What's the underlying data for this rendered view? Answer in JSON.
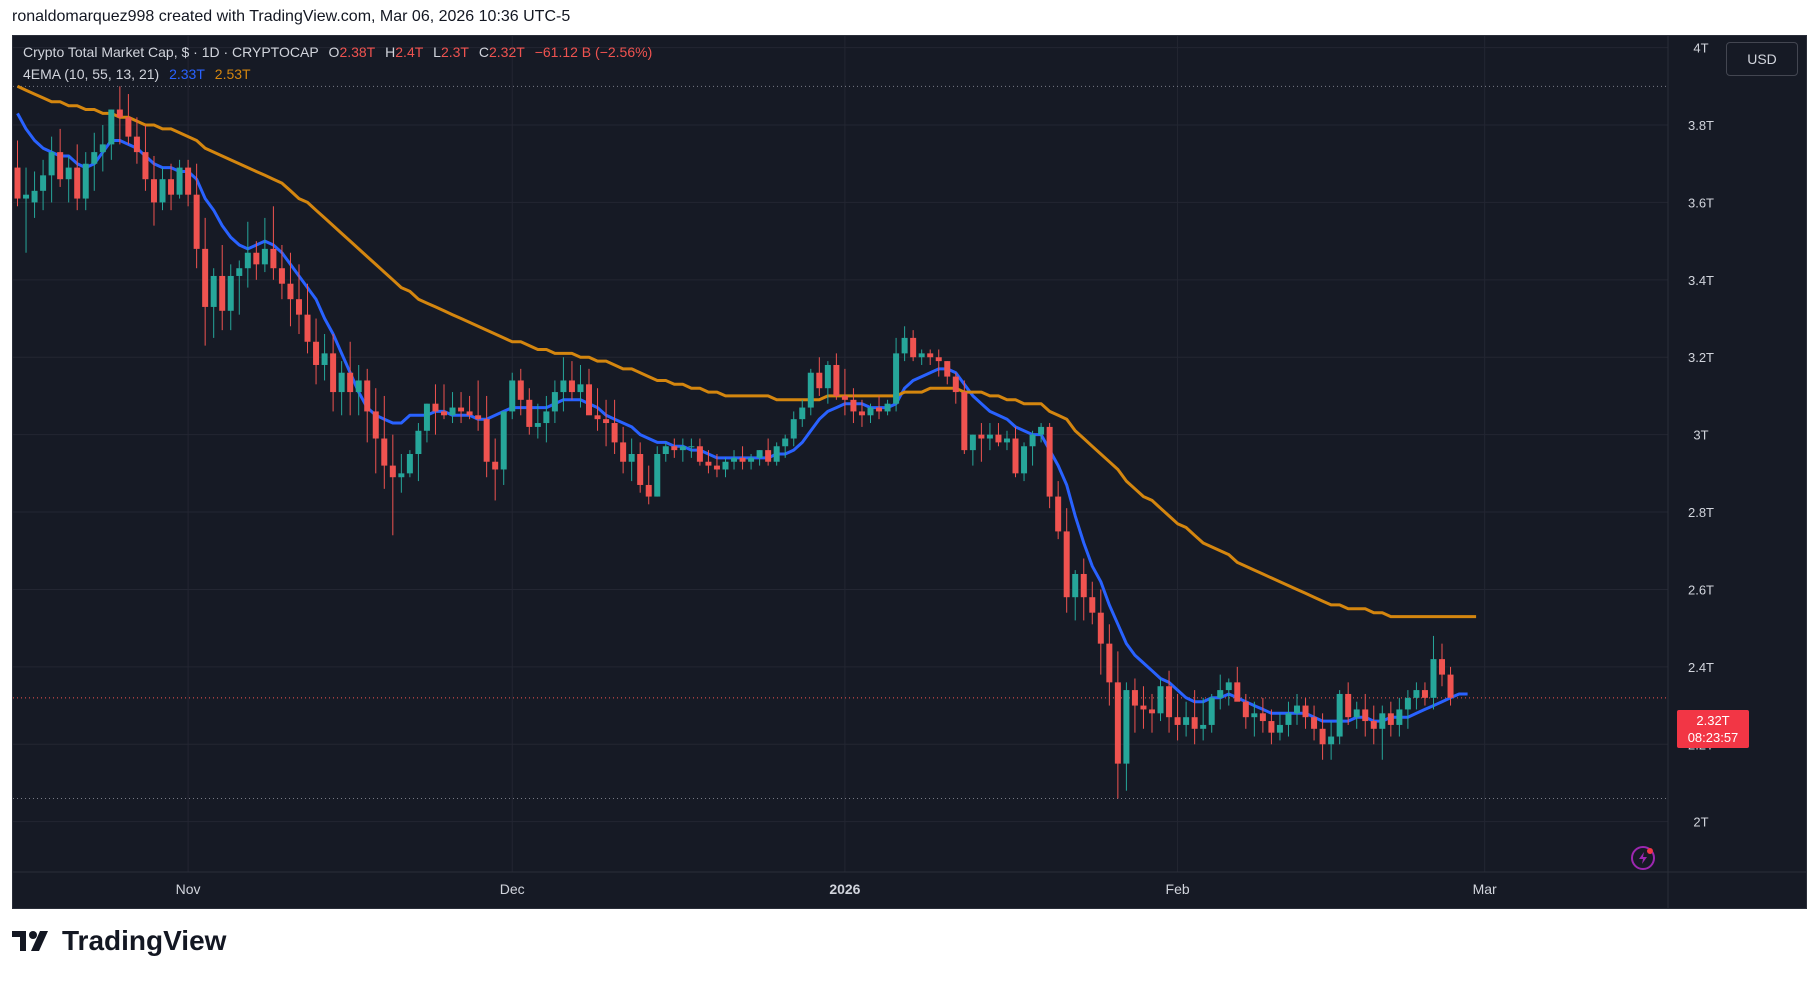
{
  "header": {
    "attribution": "ronaldomarquez998 created with TradingView.com, Mar 06, 2026 10:36 UTC-5"
  },
  "legend": {
    "symbol": "Crypto Total Market Cap, $ · 1D · CRYPTOCAP",
    "o_label": "O",
    "o_value": "2.38T",
    "h_label": "H",
    "h_value": "2.4T",
    "l_label": "L",
    "l_value": "2.3T",
    "c_label": "C",
    "c_value": "2.32T",
    "change": "−61.12 B (−2.56%)",
    "indicator": "4EMA (10, 55, 13, 21)",
    "ema_fast_value": "2.33T",
    "ema_slow_value": "2.53T"
  },
  "currency_button": "USD",
  "price_tag": {
    "value": "2.32T",
    "countdown": "08:23:57"
  },
  "brand": "TradingView",
  "colors": {
    "up": "#26a69a",
    "down": "#ef5350",
    "ema_fast": "#2962ff",
    "ema_slow": "#d4860f",
    "background": "#161a25",
    "grid": "#232632"
  },
  "chart_data": {
    "type": "candlestick",
    "yticks": [
      "2T",
      "2.2T",
      "2.4T",
      "2.6T",
      "2.8T",
      "3T",
      "3.2T",
      "3.4T",
      "3.6T",
      "3.8T",
      "4T"
    ],
    "ytick_values": [
      2.0,
      2.2,
      2.4,
      2.6,
      2.8,
      3.0,
      3.2,
      3.4,
      3.6,
      3.8,
      4.0
    ],
    "ylim": [
      1.87,
      4.03
    ],
    "xticks": [
      {
        "label": "Nov",
        "index": 20
      },
      {
        "label": "Dec",
        "index": 58
      },
      {
        "label": "2026",
        "index": 97
      },
      {
        "label": "Feb",
        "index": 136
      },
      {
        "label": "Mar",
        "index": 172
      }
    ],
    "candles": [
      [
        3.69,
        3.76,
        3.59,
        3.61
      ],
      [
        3.61,
        3.69,
        3.47,
        3.62
      ],
      [
        3.6,
        3.68,
        3.56,
        3.63
      ],
      [
        3.63,
        3.71,
        3.58,
        3.67
      ],
      [
        3.67,
        3.77,
        3.6,
        3.73
      ],
      [
        3.73,
        3.79,
        3.64,
        3.66
      ],
      [
        3.66,
        3.72,
        3.6,
        3.69
      ],
      [
        3.69,
        3.75,
        3.58,
        3.61
      ],
      [
        3.61,
        3.73,
        3.58,
        3.7
      ],
      [
        3.7,
        3.78,
        3.63,
        3.73
      ],
      [
        3.73,
        3.8,
        3.68,
        3.75
      ],
      [
        3.75,
        3.84,
        3.71,
        3.84
      ],
      [
        3.84,
        3.9,
        3.75,
        3.82
      ],
      [
        3.82,
        3.88,
        3.75,
        3.77
      ],
      [
        3.77,
        3.82,
        3.7,
        3.73
      ],
      [
        3.73,
        3.8,
        3.63,
        3.66
      ],
      [
        3.66,
        3.72,
        3.54,
        3.6
      ],
      [
        3.6,
        3.69,
        3.58,
        3.66
      ],
      [
        3.66,
        3.7,
        3.58,
        3.62
      ],
      [
        3.62,
        3.71,
        3.61,
        3.69
      ],
      [
        3.69,
        3.71,
        3.59,
        3.62
      ],
      [
        3.62,
        3.7,
        3.43,
        3.48
      ],
      [
        3.48,
        3.56,
        3.23,
        3.33
      ],
      [
        3.33,
        3.43,
        3.25,
        3.41
      ],
      [
        3.41,
        3.49,
        3.27,
        3.32
      ],
      [
        3.32,
        3.44,
        3.27,
        3.41
      ],
      [
        3.41,
        3.45,
        3.31,
        3.43
      ],
      [
        3.43,
        3.55,
        3.38,
        3.47
      ],
      [
        3.47,
        3.5,
        3.4,
        3.44
      ],
      [
        3.44,
        3.56,
        3.42,
        3.48
      ],
      [
        3.48,
        3.59,
        3.4,
        3.43
      ],
      [
        3.43,
        3.49,
        3.35,
        3.39
      ],
      [
        3.39,
        3.47,
        3.28,
        3.35
      ],
      [
        3.35,
        3.44,
        3.26,
        3.31
      ],
      [
        3.31,
        3.39,
        3.21,
        3.24
      ],
      [
        3.24,
        3.3,
        3.13,
        3.18
      ],
      [
        3.18,
        3.26,
        3.14,
        3.21
      ],
      [
        3.21,
        3.26,
        3.06,
        3.11
      ],
      [
        3.11,
        3.19,
        3.05,
        3.16
      ],
      [
        3.16,
        3.24,
        3.05,
        3.11
      ],
      [
        3.11,
        3.18,
        3.05,
        3.14
      ],
      [
        3.14,
        3.17,
        2.98,
        3.06
      ],
      [
        3.06,
        3.12,
        2.9,
        2.99
      ],
      [
        2.99,
        3.1,
        2.86,
        2.92
      ],
      [
        2.92,
        3.0,
        2.74,
        2.89
      ],
      [
        2.89,
        2.95,
        2.85,
        2.9
      ],
      [
        2.9,
        2.96,
        2.89,
        2.95
      ],
      [
        2.95,
        3.03,
        2.88,
        3.01
      ],
      [
        3.01,
        3.08,
        2.98,
        3.08
      ],
      [
        3.08,
        3.13,
        3.0,
        3.06
      ],
      [
        3.06,
        3.13,
        3.04,
        3.05
      ],
      [
        3.05,
        3.11,
        3.03,
        3.07
      ],
      [
        3.07,
        3.11,
        3.03,
        3.06
      ],
      [
        3.06,
        3.1,
        3.04,
        3.05
      ],
      [
        3.05,
        3.14,
        3.01,
        3.04
      ],
      [
        3.04,
        3.1,
        2.89,
        2.93
      ],
      [
        2.93,
        2.99,
        2.83,
        2.91
      ],
      [
        2.91,
        3.06,
        2.87,
        3.06
      ],
      [
        3.06,
        3.16,
        3.04,
        3.14
      ],
      [
        3.14,
        3.17,
        3.05,
        3.09
      ],
      [
        3.09,
        3.12,
        3.0,
        3.02
      ],
      [
        3.02,
        3.08,
        2.99,
        3.03
      ],
      [
        3.03,
        3.1,
        2.98,
        3.06
      ],
      [
        3.06,
        3.14,
        3.03,
        3.11
      ],
      [
        3.11,
        3.2,
        3.06,
        3.14
      ],
      [
        3.14,
        3.19,
        3.09,
        3.11
      ],
      [
        3.11,
        3.18,
        3.07,
        3.13
      ],
      [
        3.13,
        3.17,
        3.06,
        3.05
      ],
      [
        3.05,
        3.12,
        3.01,
        3.04
      ],
      [
        3.04,
        3.09,
        2.97,
        3.03
      ],
      [
        3.03,
        3.09,
        2.95,
        2.98
      ],
      [
        2.98,
        3.02,
        2.9,
        2.93
      ],
      [
        2.93,
        2.99,
        2.88,
        2.95
      ],
      [
        2.95,
        2.98,
        2.85,
        2.87
      ],
      [
        2.87,
        2.92,
        2.82,
        2.84
      ],
      [
        2.84,
        2.97,
        2.84,
        2.95
      ],
      [
        2.95,
        2.98,
        2.93,
        2.97
      ],
      [
        2.97,
        2.99,
        2.94,
        2.96
      ],
      [
        2.96,
        2.99,
        2.93,
        2.97
      ],
      [
        2.97,
        2.99,
        2.94,
        2.97
      ],
      [
        2.97,
        2.99,
        2.92,
        2.93
      ],
      [
        2.93,
        2.96,
        2.9,
        2.92
      ],
      [
        2.92,
        2.95,
        2.89,
        2.91
      ],
      [
        2.91,
        2.94,
        2.89,
        2.93
      ],
      [
        2.93,
        2.96,
        2.91,
        2.94
      ],
      [
        2.94,
        2.97,
        2.91,
        2.93
      ],
      [
        2.93,
        2.95,
        2.91,
        2.94
      ],
      [
        2.94,
        2.96,
        2.92,
        2.96
      ],
      [
        2.96,
        2.99,
        2.92,
        2.93
      ],
      [
        2.93,
        2.98,
        2.92,
        2.97
      ],
      [
        2.97,
        3.0,
        2.94,
        2.99
      ],
      [
        2.99,
        3.06,
        2.97,
        3.04
      ],
      [
        3.04,
        3.09,
        3.02,
        3.07
      ],
      [
        3.07,
        3.17,
        3.05,
        3.16
      ],
      [
        3.16,
        3.2,
        3.1,
        3.12
      ],
      [
        3.12,
        3.19,
        3.08,
        3.18
      ],
      [
        3.18,
        3.21,
        3.09,
        3.1
      ],
      [
        3.1,
        3.17,
        3.05,
        3.09
      ],
      [
        3.09,
        3.12,
        3.03,
        3.06
      ],
      [
        3.06,
        3.09,
        3.02,
        3.05
      ],
      [
        3.05,
        3.08,
        3.03,
        3.07
      ],
      [
        3.07,
        3.1,
        3.04,
        3.06
      ],
      [
        3.06,
        3.09,
        3.05,
        3.08
      ],
      [
        3.08,
        3.25,
        3.06,
        3.21
      ],
      [
        3.21,
        3.28,
        3.19,
        3.25
      ],
      [
        3.25,
        3.27,
        3.19,
        3.2
      ],
      [
        3.2,
        3.22,
        3.18,
        3.21
      ],
      [
        3.21,
        3.22,
        3.18,
        3.2
      ],
      [
        3.2,
        3.22,
        3.15,
        3.19
      ],
      [
        3.19,
        3.19,
        3.13,
        3.15
      ],
      [
        3.15,
        3.16,
        3.08,
        3.11
      ],
      [
        3.11,
        3.14,
        2.95,
        2.96
      ],
      [
        2.96,
        3.0,
        2.92,
        3.0
      ],
      [
        3.0,
        3.03,
        2.93,
        2.99
      ],
      [
        2.99,
        3.03,
        2.96,
        3.0
      ],
      [
        3.0,
        3.03,
        2.97,
        2.98
      ],
      [
        2.98,
        3.01,
        2.96,
        2.99
      ],
      [
        2.99,
        3.02,
        2.89,
        2.9
      ],
      [
        2.9,
        2.98,
        2.88,
        2.97
      ],
      [
        2.97,
        3.01,
        2.92,
        3.0
      ],
      [
        3.0,
        3.03,
        2.98,
        3.02
      ],
      [
        3.02,
        3.03,
        2.81,
        2.84
      ],
      [
        2.84,
        2.88,
        2.73,
        2.75
      ],
      [
        2.75,
        2.81,
        2.54,
        2.58
      ],
      [
        2.58,
        2.65,
        2.52,
        2.64
      ],
      [
        2.64,
        2.68,
        2.52,
        2.58
      ],
      [
        2.58,
        2.62,
        2.51,
        2.54
      ],
      [
        2.54,
        2.6,
        2.38,
        2.46
      ],
      [
        2.46,
        2.51,
        2.3,
        2.36
      ],
      [
        2.36,
        2.44,
        2.06,
        2.15
      ],
      [
        2.15,
        2.36,
        2.08,
        2.34
      ],
      [
        2.34,
        2.37,
        2.23,
        2.3
      ],
      [
        2.3,
        2.35,
        2.24,
        2.29
      ],
      [
        2.29,
        2.33,
        2.23,
        2.28
      ],
      [
        2.28,
        2.37,
        2.26,
        2.35
      ],
      [
        2.35,
        2.39,
        2.23,
        2.27
      ],
      [
        2.27,
        2.33,
        2.21,
        2.25
      ],
      [
        2.25,
        2.31,
        2.22,
        2.27
      ],
      [
        2.27,
        2.34,
        2.2,
        2.24
      ],
      [
        2.24,
        2.32,
        2.21,
        2.25
      ],
      [
        2.25,
        2.33,
        2.23,
        2.32
      ],
      [
        2.32,
        2.38,
        2.29,
        2.34
      ],
      [
        2.34,
        2.37,
        2.3,
        2.36
      ],
      [
        2.36,
        2.4,
        2.32,
        2.31
      ],
      [
        2.31,
        2.33,
        2.24,
        2.27
      ],
      [
        2.27,
        2.31,
        2.22,
        2.28
      ],
      [
        2.28,
        2.32,
        2.23,
        2.26
      ],
      [
        2.26,
        2.29,
        2.2,
        2.23
      ],
      [
        2.23,
        2.28,
        2.21,
        2.25
      ],
      [
        2.25,
        2.31,
        2.22,
        2.28
      ],
      [
        2.28,
        2.33,
        2.25,
        2.3
      ],
      [
        2.3,
        2.32,
        2.24,
        2.27
      ],
      [
        2.27,
        2.3,
        2.21,
        2.24
      ],
      [
        2.24,
        2.28,
        2.16,
        2.2
      ],
      [
        2.2,
        2.26,
        2.16,
        2.22
      ],
      [
        2.22,
        2.34,
        2.2,
        2.33
      ],
      [
        2.33,
        2.36,
        2.25,
        2.27
      ],
      [
        2.27,
        2.31,
        2.24,
        2.29
      ],
      [
        2.29,
        2.33,
        2.22,
        2.26
      ],
      [
        2.26,
        2.3,
        2.2,
        2.24
      ],
      [
        2.24,
        2.3,
        2.16,
        2.28
      ],
      [
        2.28,
        2.31,
        2.22,
        2.25
      ],
      [
        2.25,
        2.32,
        2.22,
        2.29
      ],
      [
        2.29,
        2.34,
        2.24,
        2.32
      ],
      [
        2.32,
        2.36,
        2.29,
        2.34
      ],
      [
        2.34,
        2.36,
        2.3,
        2.32
      ],
      [
        2.32,
        2.48,
        2.29,
        2.42
      ],
      [
        2.42,
        2.46,
        2.35,
        2.38
      ],
      [
        2.38,
        2.4,
        2.3,
        2.32
      ]
    ],
    "series": [
      {
        "name": "EMA fast",
        "values": [
          3.83,
          3.79,
          3.76,
          3.74,
          3.73,
          3.72,
          3.72,
          3.7,
          3.69,
          3.7,
          3.73,
          3.76,
          3.76,
          3.75,
          3.74,
          3.72,
          3.7,
          3.69,
          3.69,
          3.68,
          3.68,
          3.66,
          3.61,
          3.58,
          3.54,
          3.51,
          3.49,
          3.48,
          3.49,
          3.5,
          3.49,
          3.47,
          3.44,
          3.41,
          3.38,
          3.35,
          3.3,
          3.26,
          3.21,
          3.16,
          3.11,
          3.07,
          3.05,
          3.04,
          3.03,
          3.03,
          3.05,
          3.05,
          3.05,
          3.06,
          3.06,
          3.05,
          3.05,
          3.05,
          3.04,
          3.04,
          3.05,
          3.06,
          3.07,
          3.07,
          3.07,
          3.07,
          3.07,
          3.08,
          3.09,
          3.09,
          3.09,
          3.08,
          3.07,
          3.05,
          3.04,
          3.03,
          3.02,
          3.0,
          2.99,
          2.98,
          2.98,
          2.97,
          2.97,
          2.96,
          2.96,
          2.95,
          2.94,
          2.94,
          2.94,
          2.94,
          2.94,
          2.94,
          2.94,
          2.95,
          2.95,
          2.96,
          2.98,
          3.01,
          3.04,
          3.06,
          3.07,
          3.08,
          3.08,
          3.08,
          3.07,
          3.07,
          3.07,
          3.08,
          3.12,
          3.14,
          3.15,
          3.16,
          3.17,
          3.17,
          3.16,
          3.13,
          3.1,
          3.08,
          3.06,
          3.05,
          3.04,
          3.02,
          3.01,
          3.0,
          3.0,
          2.96,
          2.92,
          2.87,
          2.79,
          2.72,
          2.66,
          2.62,
          2.56,
          2.51,
          2.46,
          2.43,
          2.41,
          2.39,
          2.37,
          2.36,
          2.34,
          2.32,
          2.31,
          2.31,
          2.32,
          2.32,
          2.33,
          2.32,
          2.31,
          2.3,
          2.29,
          2.28,
          2.28,
          2.28,
          2.28,
          2.28,
          2.27,
          2.26,
          2.26,
          2.26,
          2.26,
          2.27,
          2.27,
          2.26,
          2.26,
          2.27,
          2.27,
          2.27,
          2.28,
          2.29,
          2.3,
          2.31,
          2.32,
          2.33,
          2.33
        ]
      },
      {
        "name": "EMA slow",
        "values": [
          3.9,
          3.89,
          3.88,
          3.87,
          3.86,
          3.86,
          3.85,
          3.85,
          3.84,
          3.84,
          3.83,
          3.83,
          3.82,
          3.82,
          3.81,
          3.8,
          3.8,
          3.79,
          3.79,
          3.78,
          3.77,
          3.76,
          3.74,
          3.73,
          3.72,
          3.71,
          3.7,
          3.69,
          3.68,
          3.67,
          3.66,
          3.65,
          3.63,
          3.61,
          3.6,
          3.58,
          3.56,
          3.54,
          3.52,
          3.5,
          3.48,
          3.46,
          3.44,
          3.42,
          3.4,
          3.38,
          3.37,
          3.35,
          3.34,
          3.33,
          3.32,
          3.31,
          3.3,
          3.29,
          3.28,
          3.27,
          3.26,
          3.25,
          3.24,
          3.24,
          3.23,
          3.22,
          3.22,
          3.21,
          3.21,
          3.21,
          3.2,
          3.2,
          3.19,
          3.19,
          3.18,
          3.17,
          3.17,
          3.16,
          3.15,
          3.14,
          3.14,
          3.13,
          3.13,
          3.12,
          3.12,
          3.11,
          3.11,
          3.1,
          3.1,
          3.1,
          3.1,
          3.1,
          3.1,
          3.09,
          3.09,
          3.09,
          3.09,
          3.09,
          3.09,
          3.1,
          3.1,
          3.1,
          3.1,
          3.1,
          3.1,
          3.1,
          3.1,
          3.1,
          3.11,
          3.11,
          3.11,
          3.12,
          3.12,
          3.12,
          3.12,
          3.11,
          3.11,
          3.11,
          3.1,
          3.1,
          3.09,
          3.09,
          3.08,
          3.08,
          3.08,
          3.06,
          3.05,
          3.04,
          3.01,
          2.99,
          2.97,
          2.95,
          2.93,
          2.91,
          2.88,
          2.86,
          2.84,
          2.83,
          2.81,
          2.79,
          2.77,
          2.76,
          2.74,
          2.72,
          2.71,
          2.7,
          2.69,
          2.67,
          2.66,
          2.65,
          2.64,
          2.63,
          2.62,
          2.61,
          2.6,
          2.59,
          2.58,
          2.57,
          2.56,
          2.56,
          2.55,
          2.55,
          2.55,
          2.54,
          2.54,
          2.53,
          2.53,
          2.53,
          2.53,
          2.53,
          2.53,
          2.53,
          2.53,
          2.53,
          2.53,
          2.53
        ]
      }
    ],
    "high_line": 3.9,
    "low_line": 2.06,
    "last_price": 2.32
  }
}
